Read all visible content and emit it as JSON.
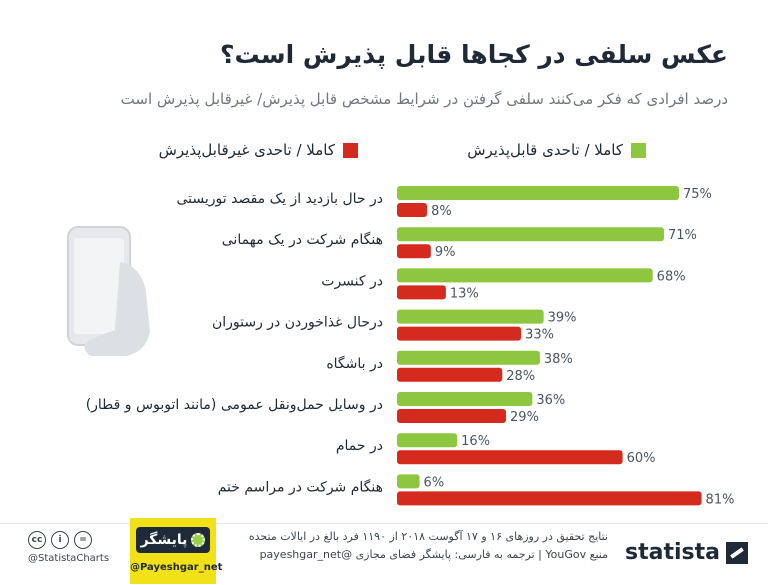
{
  "title": "عکس سلفی در کجاها قابل پذیرش است؟",
  "subtitle": "درصد افرادی که فکر می‌کنند سلفی گرفتن در شرایط مشخص قابل پذیرش/ غیرقابل پذیرش است",
  "legend": [
    {
      "label": "کاملا / تاحدی قابل‌پذیرش",
      "color": "#8dc63f"
    },
    {
      "label": "کاملا / تاحدی غیرقابل‌پذیرش",
      "color": "#d52b1e"
    }
  ],
  "chart_data": {
    "type": "bar",
    "orientation": "horizontal",
    "categories": [
      "در حال بازدید از یک مقصد توریستی",
      "هنگام شرکت در یک مهمانی",
      "در کنسرت",
      "درحال غذاخوردن در رستوران",
      "در باشگاه",
      "در وسایل حمل‌ونقل عمومی (مانند اتوبوس و قطار)",
      "در حمام",
      "هنگام شرکت در مراسم ختم"
    ],
    "series": [
      {
        "name": "کاملا / تاحدی قابل‌پذیرش",
        "color": "#8dc63f",
        "values": [
          75,
          71,
          68,
          39,
          38,
          36,
          16,
          6
        ]
      },
      {
        "name": "کاملا / تاحدی غیرقابل‌پذیرش",
        "color": "#d52b1e",
        "values": [
          8,
          9,
          13,
          33,
          28,
          29,
          60,
          81
        ]
      }
    ],
    "value_suffix": "%",
    "xlim": [
      0,
      100
    ]
  },
  "footer": {
    "source_line1": "نتایج تحقیق در روزهای ۱۶ و ۱۷ آگوست ۲۰۱۸ از ۱۱۹۰ فرد بالغ در ایالات متحده",
    "source_line2": "منبع YouGov  |  ترجمه به فارسی: پایشگر فضای مجازی @payeshgar_net",
    "statista": "statista",
    "cc_handle": "@StatistaCharts",
    "payeshgar_name": "پایشگر",
    "payeshgar_handle": "@Payeshgar_net"
  }
}
